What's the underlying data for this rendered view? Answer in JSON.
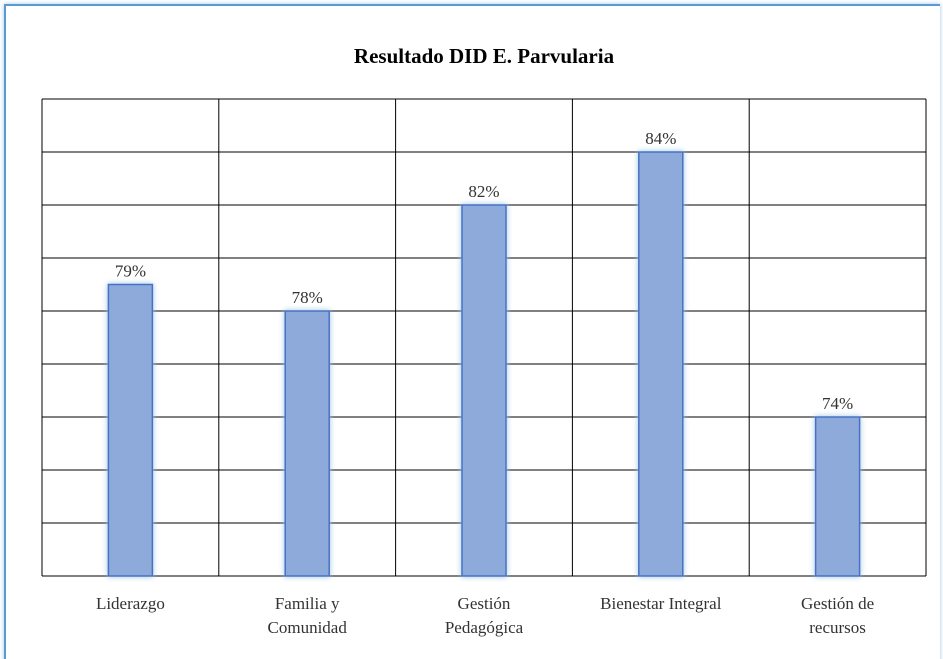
{
  "chart_data": {
    "type": "bar",
    "title": "Resultado DID E. Parvularia",
    "categories": [
      "Liderazgo",
      "Familia y\nComunidad",
      "Gestión\nPedagógica",
      "Bienestar Integral",
      "Gestión de\nrecursos"
    ],
    "values": [
      79,
      78,
      82,
      84,
      74
    ],
    "value_labels": [
      "79%",
      "78%",
      "82%",
      "84%",
      "74%"
    ],
    "color": "#8eaadb",
    "ylim": [
      68,
      86
    ],
    "yticks": [
      68,
      70,
      72,
      74,
      76,
      78,
      80,
      82,
      84,
      86
    ],
    "grid": true
  }
}
